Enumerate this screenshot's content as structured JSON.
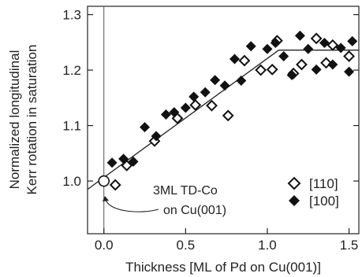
{
  "chart_data": {
    "type": "scatter",
    "xlabel": "Thickness [ML of Pd on Cu(001)]",
    "ylabel": [
      "Normalized longitudinal",
      "Kerr rotation in saturation"
    ],
    "xlim": [
      -0.1,
      1.56
    ],
    "ylim": [
      0.905,
      1.315
    ],
    "x_ticks": [
      0.0,
      0.5,
      1.0,
      1.5
    ],
    "x_tick_labels": [
      "0.0",
      "0.5",
      "1.0",
      "1.5"
    ],
    "y_ticks": [
      1.0,
      1.1,
      1.2,
      1.3
    ],
    "y_tick_labels": [
      "1.0",
      "1.1",
      "1.2",
      "1.3"
    ],
    "grid": false,
    "legend_position": "lower-right",
    "series": [
      {
        "name": "[110]",
        "marker": "open-diamond",
        "x": [
          0.07,
          0.14,
          0.31,
          0.45,
          0.56,
          0.66,
          0.76,
          0.86,
          0.96,
          1.03,
          1.06,
          1.16,
          1.21,
          1.3,
          1.36,
          1.4,
          1.5
        ],
        "y": [
          0.993,
          1.028,
          1.072,
          1.113,
          1.137,
          1.136,
          1.118,
          1.217,
          1.2,
          1.201,
          1.253,
          1.194,
          1.21,
          1.257,
          1.213,
          1.245,
          1.225
        ]
      },
      {
        "name": "[100]",
        "marker": "filled-diamond",
        "x": [
          0.05,
          0.12,
          0.18,
          0.25,
          0.32,
          0.38,
          0.43,
          0.5,
          0.55,
          0.62,
          0.68,
          0.74,
          0.8,
          0.84,
          0.9,
          1.0,
          1.05,
          1.1,
          1.15,
          1.2,
          1.25,
          1.3,
          1.35,
          1.4,
          1.45,
          1.5,
          1.52
        ],
        "y": [
          1.033,
          1.04,
          1.035,
          1.097,
          1.081,
          1.12,
          1.124,
          1.132,
          1.152,
          1.16,
          1.182,
          1.172,
          1.22,
          1.181,
          1.243,
          1.238,
          1.249,
          1.225,
          1.191,
          1.262,
          1.238,
          1.201,
          1.249,
          1.21,
          1.24,
          1.197,
          1.252
        ]
      },
      {
        "name": "3ML TD-Co",
        "marker": "open-circle",
        "x": [
          0.0
        ],
        "y": [
          1.0
        ]
      }
    ],
    "fit_lines": [
      {
        "x": [
          -0.1,
          1.07
        ],
        "y": [
          0.985,
          1.236
        ]
      },
      {
        "x": [
          1.07,
          1.56
        ],
        "y": [
          1.236,
          1.236
        ]
      }
    ],
    "vertical_line_x": 0.0,
    "annotation": {
      "lines": [
        "3ML TD-Co",
        "on Cu(001)"
      ],
      "points_to": [
        0.0,
        1.0
      ]
    }
  },
  "colors": {
    "axis": "#222222",
    "marker": "#111111",
    "background": "#ffffff"
  }
}
